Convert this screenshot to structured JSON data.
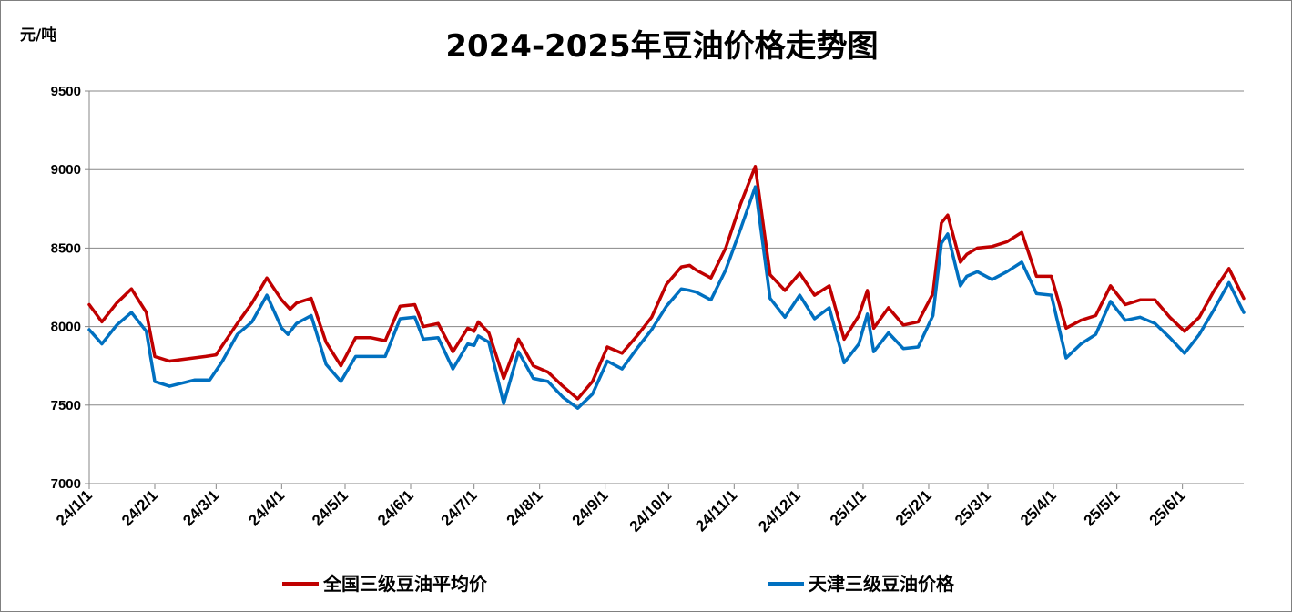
{
  "chart_data": {
    "type": "line",
    "title": "2024-2025年豆油价格走势图",
    "unit_label": "元/吨",
    "xlabel": "",
    "ylabel": "元/吨",
    "ylim": [
      7000,
      9500
    ],
    "yticks": [
      7000,
      7500,
      8000,
      8500,
      9000,
      9500
    ],
    "xlim": [
      "2024-01-01",
      "2025-06-30"
    ],
    "xticks": [
      {
        "date": "2024-01-01",
        "label": "24/1/1"
      },
      {
        "date": "2024-02-01",
        "label": "24/2/1"
      },
      {
        "date": "2024-03-01",
        "label": "24/3/1"
      },
      {
        "date": "2024-04-01",
        "label": "24/4/1"
      },
      {
        "date": "2024-05-01",
        "label": "24/5/1"
      },
      {
        "date": "2024-06-01",
        "label": "24/6/1"
      },
      {
        "date": "2024-07-01",
        "label": "24/7/1"
      },
      {
        "date": "2024-08-01",
        "label": "24/8/1"
      },
      {
        "date": "2024-09-01",
        "label": "24/9/1"
      },
      {
        "date": "2024-10-01",
        "label": "24/10/1"
      },
      {
        "date": "2024-11-01",
        "label": "24/11/1"
      },
      {
        "date": "2024-12-01",
        "label": "24/12/1"
      },
      {
        "date": "2025-01-01",
        "label": "25/1/1"
      },
      {
        "date": "2025-02-01",
        "label": "25/2/1"
      },
      {
        "date": "2025-03-01",
        "label": "25/3/1"
      },
      {
        "date": "2025-04-01",
        "label": "25/4/1"
      },
      {
        "date": "2025-05-01",
        "label": "25/5/1"
      },
      {
        "date": "2025-06-01",
        "label": "25/6/1"
      }
    ],
    "grid": "horizontal",
    "legend_position": "bottom",
    "series": [
      {
        "name": "全国三级豆油平均价",
        "color": "#c00000",
        "points": [
          [
            "2024-01-01",
            8140
          ],
          [
            "2024-01-07",
            8030
          ],
          [
            "2024-01-14",
            8150
          ],
          [
            "2024-01-21",
            8240
          ],
          [
            "2024-01-28",
            8090
          ],
          [
            "2024-02-01",
            7810
          ],
          [
            "2024-02-08",
            7780
          ],
          [
            "2024-02-25",
            7810
          ],
          [
            "2024-03-01",
            7820
          ],
          [
            "2024-03-05",
            7900
          ],
          [
            "2024-03-11",
            8020
          ],
          [
            "2024-03-18",
            8150
          ],
          [
            "2024-03-25",
            8310
          ],
          [
            "2024-04-01",
            8170
          ],
          [
            "2024-04-05",
            8110
          ],
          [
            "2024-04-08",
            8150
          ],
          [
            "2024-04-15",
            8180
          ],
          [
            "2024-04-22",
            7900
          ],
          [
            "2024-04-29",
            7750
          ],
          [
            "2024-05-06",
            7930
          ],
          [
            "2024-05-13",
            7930
          ],
          [
            "2024-05-20",
            7910
          ],
          [
            "2024-05-27",
            8130
          ],
          [
            "2024-06-03",
            8140
          ],
          [
            "2024-06-07",
            8000
          ],
          [
            "2024-06-14",
            8020
          ],
          [
            "2024-06-21",
            7840
          ],
          [
            "2024-06-28",
            7990
          ],
          [
            "2024-07-01",
            7970
          ],
          [
            "2024-07-03",
            8030
          ],
          [
            "2024-07-08",
            7960
          ],
          [
            "2024-07-15",
            7670
          ],
          [
            "2024-07-22",
            7920
          ],
          [
            "2024-07-29",
            7750
          ],
          [
            "2024-08-05",
            7710
          ],
          [
            "2024-08-12",
            7620
          ],
          [
            "2024-08-19",
            7540
          ],
          [
            "2024-08-26",
            7650
          ],
          [
            "2024-09-02",
            7870
          ],
          [
            "2024-09-09",
            7830
          ],
          [
            "2024-09-16",
            7940
          ],
          [
            "2024-09-23",
            8060
          ],
          [
            "2024-09-30",
            8270
          ],
          [
            "2024-10-07",
            8380
          ],
          [
            "2024-10-11",
            8390
          ],
          [
            "2024-10-14",
            8360
          ],
          [
            "2024-10-21",
            8310
          ],
          [
            "2024-10-28",
            8500
          ],
          [
            "2024-11-04",
            8780
          ],
          [
            "2024-11-11",
            9020
          ],
          [
            "2024-11-18",
            8330
          ],
          [
            "2024-11-25",
            8230
          ],
          [
            "2024-12-02",
            8340
          ],
          [
            "2024-12-09",
            8200
          ],
          [
            "2024-12-16",
            8260
          ],
          [
            "2024-12-23",
            7920
          ],
          [
            "2024-12-30",
            8070
          ],
          [
            "2025-01-03",
            8230
          ],
          [
            "2025-01-06",
            7990
          ],
          [
            "2025-01-13",
            8120
          ],
          [
            "2025-01-20",
            8010
          ],
          [
            "2025-01-27",
            8030
          ],
          [
            "2025-02-03",
            8210
          ],
          [
            "2025-02-07",
            8660
          ],
          [
            "2025-02-10",
            8710
          ],
          [
            "2025-02-16",
            8410
          ],
          [
            "2025-02-19",
            8460
          ],
          [
            "2025-02-24",
            8500
          ],
          [
            "2025-03-03",
            8510
          ],
          [
            "2025-03-10",
            8540
          ],
          [
            "2025-03-17",
            8600
          ],
          [
            "2025-03-24",
            8320
          ],
          [
            "2025-03-31",
            8320
          ],
          [
            "2025-04-07",
            7990
          ],
          [
            "2025-04-14",
            8040
          ],
          [
            "2025-04-21",
            8070
          ],
          [
            "2025-04-28",
            8260
          ],
          [
            "2025-05-05",
            8140
          ],
          [
            "2025-05-12",
            8170
          ],
          [
            "2025-05-19",
            8170
          ],
          [
            "2025-05-26",
            8060
          ],
          [
            "2025-06-02",
            7970
          ],
          [
            "2025-06-09",
            8060
          ],
          [
            "2025-06-16",
            8230
          ],
          [
            "2025-06-23",
            8370
          ],
          [
            "2025-06-30",
            8180
          ]
        ]
      },
      {
        "name": "天津三级豆油价格",
        "color": "#0070c0",
        "points": [
          [
            "2024-01-01",
            7980
          ],
          [
            "2024-01-07",
            7890
          ],
          [
            "2024-01-14",
            8010
          ],
          [
            "2024-01-21",
            8090
          ],
          [
            "2024-01-28",
            7970
          ],
          [
            "2024-02-01",
            7650
          ],
          [
            "2024-02-08",
            7620
          ],
          [
            "2024-02-20",
            7660
          ],
          [
            "2024-02-27",
            7660
          ],
          [
            "2024-03-04",
            7780
          ],
          [
            "2024-03-11",
            7950
          ],
          [
            "2024-03-18",
            8030
          ],
          [
            "2024-03-25",
            8200
          ],
          [
            "2024-04-01",
            7990
          ],
          [
            "2024-04-04",
            7950
          ],
          [
            "2024-04-08",
            8020
          ],
          [
            "2024-04-15",
            8070
          ],
          [
            "2024-04-22",
            7760
          ],
          [
            "2024-04-29",
            7650
          ],
          [
            "2024-05-06",
            7810
          ],
          [
            "2024-05-13",
            7810
          ],
          [
            "2024-05-20",
            7810
          ],
          [
            "2024-05-27",
            8050
          ],
          [
            "2024-06-03",
            8060
          ],
          [
            "2024-06-07",
            7920
          ],
          [
            "2024-06-14",
            7930
          ],
          [
            "2024-06-21",
            7730
          ],
          [
            "2024-06-28",
            7890
          ],
          [
            "2024-07-01",
            7880
          ],
          [
            "2024-07-03",
            7940
          ],
          [
            "2024-07-08",
            7900
          ],
          [
            "2024-07-15",
            7510
          ],
          [
            "2024-07-22",
            7840
          ],
          [
            "2024-07-29",
            7670
          ],
          [
            "2024-08-05",
            7650
          ],
          [
            "2024-08-12",
            7550
          ],
          [
            "2024-08-19",
            7480
          ],
          [
            "2024-08-26",
            7570
          ],
          [
            "2024-09-02",
            7780
          ],
          [
            "2024-09-09",
            7730
          ],
          [
            "2024-09-16",
            7860
          ],
          [
            "2024-09-23",
            7980
          ],
          [
            "2024-09-30",
            8130
          ],
          [
            "2024-10-07",
            8240
          ],
          [
            "2024-10-11",
            8230
          ],
          [
            "2024-10-14",
            8220
          ],
          [
            "2024-10-21",
            8170
          ],
          [
            "2024-10-28",
            8360
          ],
          [
            "2024-11-04",
            8620
          ],
          [
            "2024-11-11",
            8890
          ],
          [
            "2024-11-18",
            8180
          ],
          [
            "2024-11-25",
            8060
          ],
          [
            "2024-12-02",
            8200
          ],
          [
            "2024-12-09",
            8050
          ],
          [
            "2024-12-16",
            8120
          ],
          [
            "2024-12-23",
            7770
          ],
          [
            "2024-12-30",
            7890
          ],
          [
            "2025-01-03",
            8080
          ],
          [
            "2025-01-06",
            7840
          ],
          [
            "2025-01-13",
            7960
          ],
          [
            "2025-01-20",
            7860
          ],
          [
            "2025-01-27",
            7870
          ],
          [
            "2025-02-03",
            8070
          ],
          [
            "2025-02-07",
            8530
          ],
          [
            "2025-02-10",
            8590
          ],
          [
            "2025-02-16",
            8260
          ],
          [
            "2025-02-19",
            8320
          ],
          [
            "2025-02-24",
            8350
          ],
          [
            "2025-03-03",
            8300
          ],
          [
            "2025-03-10",
            8350
          ],
          [
            "2025-03-17",
            8410
          ],
          [
            "2025-03-24",
            8210
          ],
          [
            "2025-03-31",
            8200
          ],
          [
            "2025-04-07",
            7800
          ],
          [
            "2025-04-14",
            7890
          ],
          [
            "2025-04-21",
            7950
          ],
          [
            "2025-04-28",
            8160
          ],
          [
            "2025-05-05",
            8040
          ],
          [
            "2025-05-12",
            8060
          ],
          [
            "2025-05-19",
            8020
          ],
          [
            "2025-05-26",
            7930
          ],
          [
            "2025-06-02",
            7830
          ],
          [
            "2025-06-09",
            7950
          ],
          [
            "2025-06-16",
            8110
          ],
          [
            "2025-06-23",
            8280
          ],
          [
            "2025-06-30",
            8090
          ]
        ]
      }
    ]
  }
}
